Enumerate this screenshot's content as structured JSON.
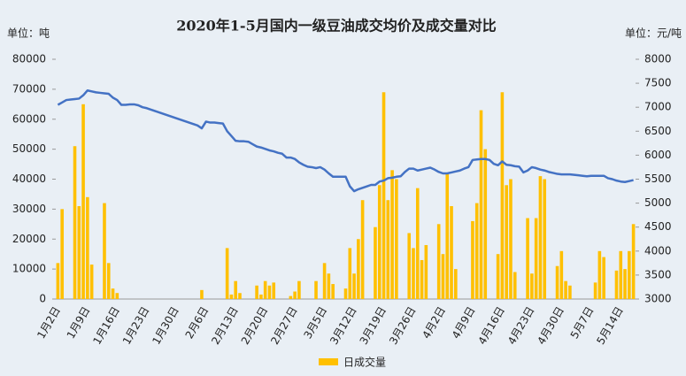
{
  "chart_data": {
    "type": "combo",
    "title": "2020年1-5月国内一级豆油成交均价及成交量对比",
    "y_label": "单位：吨",
    "y2_label": "单位：元/吨",
    "categories": [
      "1月2日",
      null,
      null,
      null,
      null,
      null,
      null,
      "1月9日",
      null,
      null,
      null,
      null,
      null,
      null,
      "1月16日",
      null,
      null,
      null,
      null,
      null,
      null,
      "1月23日",
      null,
      null,
      null,
      null,
      null,
      null,
      "1月30日",
      null,
      null,
      null,
      null,
      null,
      null,
      "2月6日",
      null,
      null,
      null,
      null,
      null,
      null,
      "2月13日",
      null,
      null,
      null,
      null,
      null,
      null,
      "2月20日",
      null,
      null,
      null,
      null,
      null,
      null,
      "2月27日",
      null,
      null,
      null,
      null,
      null,
      null,
      "3月5日",
      null,
      null,
      null,
      null,
      null,
      null,
      "3月12日",
      null,
      null,
      null,
      null,
      null,
      null,
      "3月19日",
      null,
      null,
      null,
      null,
      null,
      null,
      "3月26日",
      null,
      null,
      null,
      null,
      null,
      null,
      "4月2日",
      null,
      null,
      null,
      null,
      null,
      null,
      "4月9日",
      null,
      null,
      null,
      null,
      null,
      null,
      "4月16日",
      null,
      null,
      null,
      null,
      null,
      null,
      "4月23日",
      null,
      null,
      null,
      null,
      null,
      null,
      "4月30日",
      null,
      null,
      null,
      null,
      null,
      null,
      "5月7日",
      null,
      null,
      null,
      null,
      null,
      null,
      "5月14日",
      null,
      null,
      null
    ],
    "series": [
      {
        "name": "日成交量",
        "type": "bar",
        "color": "#ffc000",
        "values": [
          12000,
          30000,
          null,
          null,
          51000,
          31000,
          65000,
          34000,
          11500,
          null,
          null,
          32000,
          12000,
          3500,
          2000,
          null,
          null,
          null,
          null,
          null,
          null,
          null,
          null,
          null,
          null,
          null,
          null,
          null,
          null,
          null,
          null,
          null,
          null,
          null,
          3000,
          null,
          null,
          null,
          null,
          null,
          17000,
          1500,
          6000,
          2000,
          null,
          null,
          null,
          4500,
          1500,
          6000,
          4500,
          5500,
          null,
          null,
          null,
          1000,
          2500,
          6000,
          null,
          null,
          null,
          6000,
          null,
          12000,
          8500,
          5000,
          null,
          null,
          3500,
          17000,
          8500,
          20000,
          33000,
          null,
          null,
          24000,
          38000,
          69000,
          33000,
          43000,
          40000,
          null,
          null,
          22000,
          17000,
          37000,
          13000,
          18000,
          null,
          null,
          25000,
          15000,
          42000,
          31000,
          10000,
          null,
          null,
          null,
          26000,
          32000,
          63000,
          50000,
          null,
          null,
          15000,
          69000,
          38000,
          40000,
          9000,
          null,
          null,
          27000,
          8500,
          27000,
          41000,
          40000,
          null,
          null,
          11000,
          16000,
          6000,
          4500,
          null,
          null,
          null,
          null,
          null,
          5500,
          16000,
          14000,
          null,
          null,
          9500,
          16000,
          10000,
          16000,
          25000
        ]
      },
      {
        "type": "line",
        "axis": "y2",
        "color": "#4472c4",
        "values": [
          7050,
          7100,
          7150,
          7160,
          7170,
          7180,
          7250,
          7350,
          7330,
          7310,
          7300,
          7290,
          7280,
          7200,
          7150,
          7050,
          7050,
          7060,
          7060,
          7040,
          7000,
          6980,
          6950,
          6920,
          6890,
          6860,
          6830,
          6800,
          6770,
          6740,
          6710,
          6680,
          6650,
          6620,
          6560,
          6700,
          6680,
          6680,
          6670,
          6660,
          6500,
          6400,
          6300,
          6290,
          6290,
          6280,
          6230,
          6180,
          6160,
          6130,
          6100,
          6080,
          6050,
          6030,
          5950,
          5950,
          5920,
          5850,
          5800,
          5760,
          5750,
          5730,
          5750,
          5700,
          5620,
          5550,
          5550,
          5550,
          5550,
          5350,
          5250,
          5290,
          5320,
          5350,
          5380,
          5380,
          5450,
          5470,
          5520,
          5530,
          5550,
          5560,
          5650,
          5720,
          5720,
          5680,
          5700,
          5720,
          5740,
          5700,
          5650,
          5620,
          5620,
          5640,
          5660,
          5680,
          5720,
          5750,
          5900,
          5910,
          5920,
          5920,
          5900,
          5820,
          5790,
          5870,
          5800,
          5790,
          5770,
          5760,
          5640,
          5680,
          5750,
          5730,
          5700,
          5680,
          5650,
          5630,
          5610,
          5600,
          5600,
          5600,
          5590,
          5580,
          5570,
          5560,
          5570,
          5570,
          5570,
          5570,
          5520,
          5500,
          5470,
          5450,
          5440,
          5460,
          5480
        ]
      }
    ],
    "ylim": [
      0,
      80000
    ],
    "yticks": [
      0,
      10000,
      20000,
      30000,
      40000,
      50000,
      60000,
      70000,
      80000
    ],
    "y2lim": [
      3000,
      8000
    ],
    "y2ticks": [
      3000,
      3500,
      4000,
      4500,
      5000,
      5500,
      6000,
      6500,
      7000,
      7500,
      8000
    ]
  }
}
